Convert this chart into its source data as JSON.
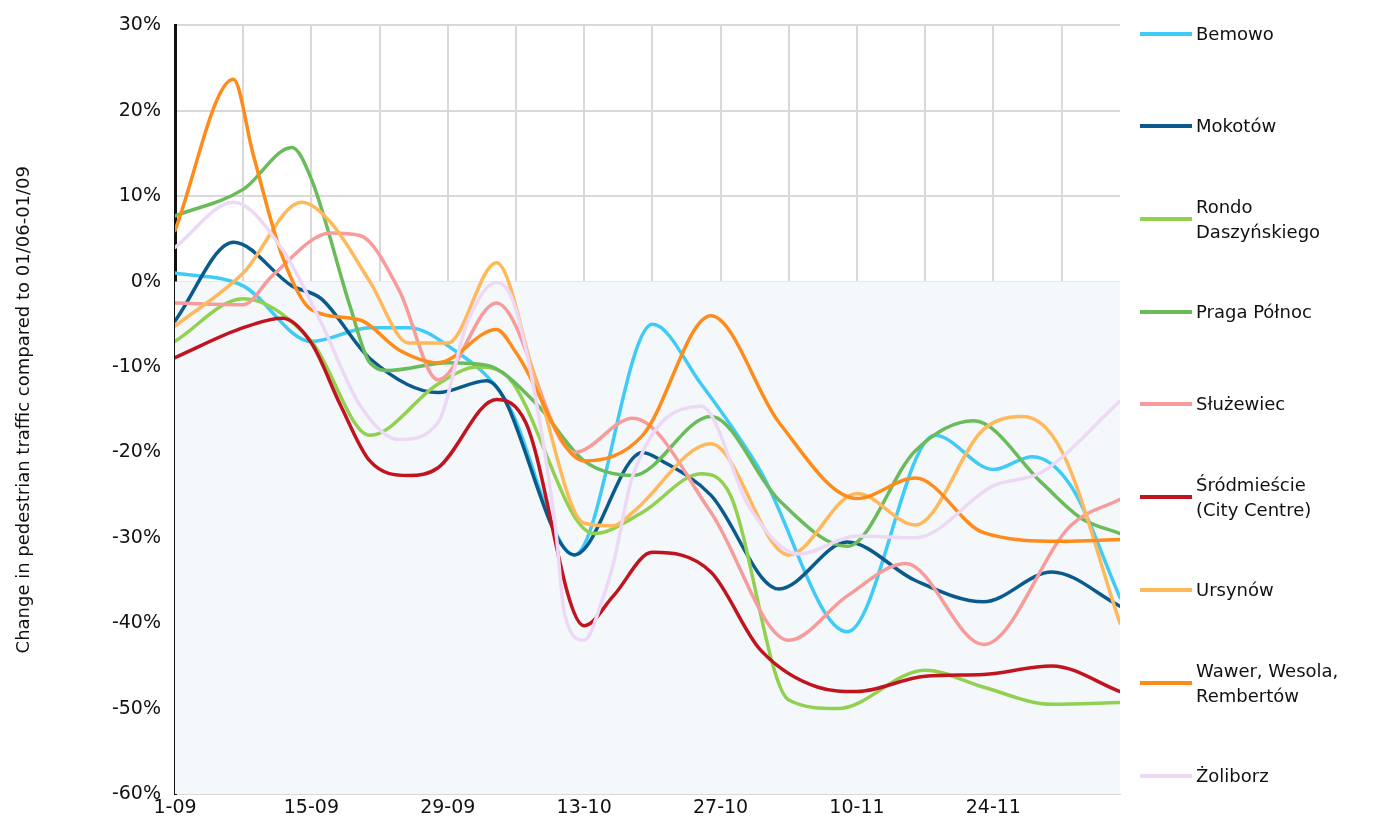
{
  "chart_data": {
    "type": "line",
    "ylabel": "Change in pedestrian traffic compared to 01/06-01/09",
    "xlim": [
      "--09-01",
      "--12-07"
    ],
    "xticks": [
      {
        "value": "--09-01",
        "label": "1-09"
      },
      {
        "value": "--09-08",
        "label": null
      },
      {
        "value": "--09-15",
        "label": "15-09"
      },
      {
        "value": "--09-22",
        "label": null
      },
      {
        "value": "--09-29",
        "label": "29-09"
      },
      {
        "value": "--10-06",
        "label": null
      },
      {
        "value": "--10-13",
        "label": "13-10"
      },
      {
        "value": "--10-20",
        "label": null
      },
      {
        "value": "--10-27",
        "label": "27-10"
      },
      {
        "value": "--11-03",
        "label": null
      },
      {
        "value": "--11-10",
        "label": "10-11"
      },
      {
        "value": "--11-17",
        "label": null
      },
      {
        "value": "--11-24",
        "label": "24-11"
      },
      {
        "value": "--12-01",
        "label": null
      }
    ],
    "ylim": [
      -60,
      30
    ],
    "yticks": [
      {
        "value": -60,
        "label": "-60%"
      },
      {
        "value": -50,
        "label": "-50%"
      },
      {
        "value": -40,
        "label": "-40%"
      },
      {
        "value": -30,
        "label": "-30%"
      },
      {
        "value": -20,
        "label": "-20%"
      },
      {
        "value": -10,
        "label": "-10%"
      },
      {
        "value": 0,
        "label": "0%"
      },
      {
        "value": 10,
        "label": "10%"
      },
      {
        "value": 20,
        "label": "20%"
      },
      {
        "value": 30,
        "label": "30%"
      }
    ],
    "grid": true,
    "legend": "right",
    "marker": "none",
    "line_style": "solid",
    "bands": [
      {
        "axis": "y",
        "from": -60,
        "to": 0,
        "color": "#f4f8fb"
      }
    ],
    "series": [
      {
        "name": "Bemowo",
        "color": "#3fcbf5",
        "x": [
          "--09-01",
          "--09-08",
          "--09-15",
          "--09-21",
          "--09-25",
          "--09-29",
          "--10-05",
          "--10-12",
          "--10-20",
          "--10-25",
          "--10-31",
          "--11-09",
          "--11-18",
          "--11-24",
          "--11-28",
          "--12-02",
          "--12-07"
        ],
        "values": [
          1,
          -0.5,
          -7,
          -5.4,
          -5.4,
          -7.5,
          -14,
          -32,
          -5,
          -12,
          -22,
          -41,
          -18,
          -22,
          -20.5,
          -24,
          -37
        ]
      },
      {
        "name": "Mokotów",
        "color": "#0a5a8c",
        "x": [
          "--09-01",
          "--09-07",
          "--09-13",
          "--09-16",
          "--09-21",
          "--09-28",
          "--10-03",
          "--10-12",
          "--10-19",
          "--10-21",
          "--10-26",
          "--11-02",
          "--11-09",
          "--11-16",
          "--11-23",
          "--11-30",
          "--12-07"
        ],
        "values": [
          -4.6,
          4.6,
          -0.5,
          -2,
          -9,
          -13,
          -11.6,
          -32,
          -20,
          -21,
          -25,
          -36,
          -30.5,
          -35,
          -37.5,
          -34,
          -38
        ]
      },
      {
        "name": "Rondo Daszyńskiego",
        "color": "#92d050",
        "x": [
          "--09-01",
          "--09-08",
          "--09-15",
          "--09-21",
          "--09-28",
          "--10-02",
          "--10-05",
          "--10-14",
          "--10-19",
          "--10-25",
          "--10-28",
          "--11-03",
          "--11-08",
          "--11-17",
          "--11-23",
          "--11-30",
          "--12-07"
        ],
        "values": [
          -7,
          -2,
          -7,
          -18,
          -12,
          -10,
          -11,
          -29.5,
          -27,
          -22.5,
          -25,
          -49,
          -50,
          -45.5,
          -47.5,
          -49.5,
          -49.3
        ]
      },
      {
        "name": "Praga Północ",
        "color": "#6abb5a",
        "x": [
          "--09-01",
          "--09-08",
          "--09-13",
          "--09-15",
          "--09-19",
          "--09-21",
          "--09-23",
          "--09-29",
          "--10-03",
          "--10-08",
          "--10-13",
          "--10-18",
          "--10-26",
          "--11-02",
          "--11-09",
          "--11-16",
          "--11-22",
          "--11-29",
          "--12-03",
          "--12-07"
        ],
        "values": [
          7.7,
          10.8,
          15.7,
          12,
          -3,
          -9.5,
          -10.4,
          -9.5,
          -9.8,
          -14.2,
          -21,
          -22.7,
          -15.8,
          -25.6,
          -31,
          -19.8,
          -16.3,
          -23.6,
          -27.7,
          -29.5
        ]
      },
      {
        "name": "Służewiec",
        "color": "#f79b9b",
        "x": [
          "--09-01",
          "--09-08",
          "--09-11",
          "--09-17",
          "--09-20",
          "--09-24",
          "--09-28",
          "--10-04",
          "--10-12",
          "--10-18",
          "--10-26",
          "--11-03",
          "--11-09",
          "--11-15",
          "--11-23",
          "--12-02",
          "--12-07"
        ],
        "values": [
          -2.5,
          -2.7,
          0.7,
          5.7,
          5.4,
          -1,
          -11.5,
          -2.5,
          -20,
          -16,
          -27,
          -42,
          -36.8,
          -33,
          -42.5,
          -28.5,
          -25.5
        ]
      },
      {
        "name": "Śródmieście (City Centre)",
        "color": "#c0141e",
        "x": [
          "--09-01",
          "--09-08",
          "--09-12",
          "--09-15",
          "--09-18",
          "--09-21",
          "--09-25",
          "--09-28",
          "--10-04",
          "--10-07",
          "--10-13",
          "--10-16",
          "--10-20",
          "--10-26",
          "--10-31",
          "--11-06",
          "--11-10",
          "--11-17",
          "--11-23",
          "--11-30",
          "--12-07"
        ],
        "values": [
          -8.9,
          -5.4,
          -4.3,
          -7.2,
          -14.5,
          -21,
          -22.7,
          -21.8,
          -13.8,
          -16.5,
          -40.3,
          -36.8,
          -31.7,
          -34,
          -43,
          -47.5,
          -48,
          -46.2,
          -46,
          -45,
          -48
        ]
      },
      {
        "name": "Ursynów",
        "color": "#ffb85c",
        "x": [
          "--09-01",
          "--09-08",
          "--09-14",
          "--09-17",
          "--09-21",
          "--09-25",
          "--09-29",
          "--10-04",
          "--10-08",
          "--10-13",
          "--10-16",
          "--10-18",
          "--10-26",
          "--11-03",
          "--11-10",
          "--11-16",
          "--11-23",
          "--11-27",
          "--12-01",
          "--12-07"
        ],
        "values": [
          -5.2,
          1,
          9.3,
          6.9,
          0,
          -7.2,
          -7.2,
          2.2,
          -11.5,
          -28.3,
          -28.6,
          -27,
          -19,
          -32,
          -24.8,
          -28.5,
          -17.3,
          -15.8,
          -19.8,
          -40
        ]
      },
      {
        "name": "Wawer, Wesola, Rembertów",
        "color": "#ff8c1a",
        "x": [
          "--09-01",
          "--09-07",
          "--09-09",
          "--09-12",
          "--09-15",
          "--09-20",
          "--09-24",
          "--09-28",
          "--10-04",
          "--10-06",
          "--10-13",
          "--10-19",
          "--10-26",
          "--11-02",
          "--11-10",
          "--11-16",
          "--11-23",
          "--12-01",
          "--12-07"
        ],
        "values": [
          6,
          23.7,
          15,
          3,
          -3.3,
          -4.5,
          -8,
          -9.5,
          -5.6,
          -8.3,
          -21,
          -18,
          -4,
          -16.5,
          -25.4,
          -23,
          -29.4,
          -30.4,
          -30.2
        ]
      },
      {
        "name": "Żoliborz",
        "color": "#edd9f5",
        "x": [
          "--09-01",
          "--09-07",
          "--09-12",
          "--09-16",
          "--09-20",
          "--09-24",
          "--09-28",
          "--10-01",
          "--10-04",
          "--10-06",
          "--10-10",
          "--10-11",
          "--10-13",
          "--10-15",
          "--10-16",
          "--10-18",
          "--10-25",
          "--10-30",
          "--11-04",
          "--11-10",
          "--11-16",
          "--11-24",
          "--11-29",
          "--12-07"
        ],
        "values": [
          4,
          9.3,
          3.8,
          -4.8,
          -14.5,
          -18.5,
          -16.5,
          -4.8,
          -0.1,
          -3.3,
          -28.3,
          -39,
          -42,
          -36.8,
          -33,
          -22.7,
          -14.6,
          -26.5,
          -31.9,
          -29.8,
          -30,
          -23.9,
          -22.3,
          -14
        ]
      }
    ]
  }
}
